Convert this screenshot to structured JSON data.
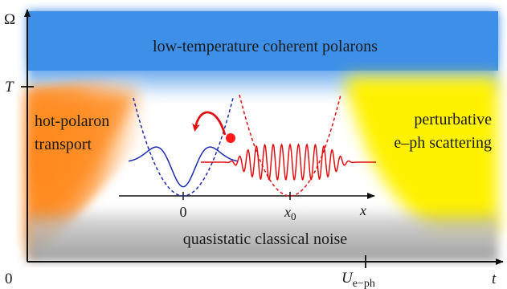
{
  "axes": {
    "y_label": "Ω",
    "y_tick": "T",
    "x_label": "t",
    "x_tick_main": "U",
    "x_tick_sub": "e−ph",
    "origin": "0"
  },
  "regions": {
    "top": "low-temperature coherent polarons",
    "left_line1": "hot-polaron",
    "left_line2": "transport",
    "right_line1": "perturbative",
    "right_line2": "e–ph scattering",
    "bottom": "quasistatic classical noise"
  },
  "inset": {
    "tick_left": "0",
    "tick_right_main": "x",
    "tick_right_sub": "0",
    "axis_label": "x"
  },
  "colors": {
    "top_band": "#3d8fe8",
    "left_region": "#ff8a1e",
    "right_region": "#fff200",
    "bottom_band": "#a8a8a8",
    "left_well": "#1a2bb0",
    "right_well": "#e01010"
  }
}
